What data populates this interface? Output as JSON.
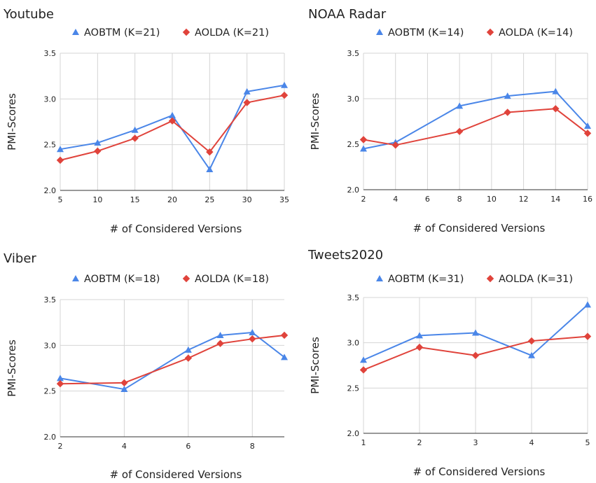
{
  "chart_data": [
    {
      "type": "line",
      "title": "Youtube",
      "xlabel": "# of Considered Versions",
      "ylabel": "PMI-Scores",
      "xlim": [
        5,
        35
      ],
      "ylim": [
        2.0,
        3.5
      ],
      "xticks": [
        5,
        10,
        15,
        20,
        25,
        30,
        35
      ],
      "xtick_labels": [
        "5",
        "10",
        "15",
        "20",
        "25",
        "30",
        "35"
      ],
      "yticks": [
        2.0,
        2.5,
        3.0,
        3.5
      ],
      "ytick_labels": [
        "2.0",
        "2.5",
        "3.0",
        "3.5"
      ],
      "grid": true,
      "legend": "top",
      "series": [
        {
          "name": "AOBTM (K=21)",
          "color": "#4a86e8",
          "marker": "triangle",
          "x": [
            5,
            10,
            15,
            20,
            25,
            30,
            35
          ],
          "values": [
            2.45,
            2.52,
            2.66,
            2.82,
            2.23,
            3.08,
            3.15
          ]
        },
        {
          "name": "AOLDA (K=21)",
          "color": "#e0433b",
          "marker": "diamond",
          "x": [
            5,
            10,
            15,
            20,
            25,
            30,
            35
          ],
          "values": [
            2.33,
            2.43,
            2.57,
            2.76,
            2.42,
            2.96,
            3.04
          ]
        }
      ]
    },
    {
      "type": "line",
      "title": "NOAA Radar",
      "xlabel": "# of Considered Versions",
      "ylabel": "PMI-Scores",
      "xlim": [
        2,
        16
      ],
      "ylim": [
        2.0,
        3.5
      ],
      "xticks": [
        2,
        4,
        6,
        8,
        10,
        12,
        14,
        16
      ],
      "xtick_labels": [
        "2",
        "4",
        "6",
        "8",
        "10",
        "12",
        "14",
        "16"
      ],
      "yticks": [
        2.0,
        2.5,
        3.0,
        3.5
      ],
      "ytick_labels": [
        "2.0",
        "2.5",
        "3.0",
        "3.5"
      ],
      "grid": true,
      "legend": "top",
      "series": [
        {
          "name": "AOBTM (K=14)",
          "color": "#4a86e8",
          "marker": "triangle",
          "x": [
            2,
            4,
            8,
            11,
            14,
            16
          ],
          "values": [
            2.45,
            2.52,
            2.92,
            3.03,
            3.08,
            2.7
          ]
        },
        {
          "name": "AOLDA (K=14)",
          "color": "#e0433b",
          "marker": "diamond",
          "x": [
            2,
            4,
            8,
            11,
            14,
            16
          ],
          "values": [
            2.55,
            2.49,
            2.64,
            2.85,
            2.89,
            2.62
          ]
        }
      ]
    },
    {
      "type": "line",
      "title": "Viber",
      "xlabel": "# of Considered Versions",
      "ylabel": "PMI-Scores",
      "xlim": [
        2,
        9
      ],
      "ylim": [
        2.0,
        3.5
      ],
      "xticks": [
        2,
        4,
        6,
        8
      ],
      "xtick_labels": [
        "2",
        "4",
        "6",
        "8"
      ],
      "yticks": [
        2.0,
        2.5,
        3.0,
        3.5
      ],
      "ytick_labels": [
        "2.0",
        "2.5",
        "3.0",
        "3.5"
      ],
      "grid": true,
      "legend": "top",
      "series": [
        {
          "name": "AOBTM (K=18)",
          "color": "#4a86e8",
          "marker": "triangle",
          "x": [
            2,
            4,
            6,
            7,
            8,
            9
          ],
          "values": [
            2.64,
            2.52,
            2.95,
            3.11,
            3.14,
            2.87
          ]
        },
        {
          "name": "AOLDA (K=18)",
          "color": "#e0433b",
          "marker": "diamond",
          "x": [
            2,
            4,
            6,
            7,
            8,
            9
          ],
          "values": [
            2.58,
            2.59,
            2.86,
            3.02,
            3.07,
            3.11
          ]
        }
      ]
    },
    {
      "type": "line",
      "title": "Tweets2020",
      "xlabel": "# of Considered Versions",
      "ylabel": "PMI-Scores",
      "xlim": [
        1,
        5
      ],
      "ylim": [
        2.0,
        3.5
      ],
      "xticks": [
        1,
        2,
        3,
        4,
        5
      ],
      "xtick_labels": [
        "1",
        "2",
        "3",
        "4",
        "5"
      ],
      "yticks": [
        2.0,
        2.5,
        3.0,
        3.5
      ],
      "ytick_labels": [
        "2.0",
        "2.5",
        "3.0",
        "3.5"
      ],
      "grid": true,
      "legend": "top",
      "series": [
        {
          "name": "AOBTM (K=31)",
          "color": "#4a86e8",
          "marker": "triangle",
          "x": [
            1,
            2,
            3,
            4,
            5
          ],
          "values": [
            2.81,
            3.08,
            3.11,
            2.86,
            3.42
          ]
        },
        {
          "name": "AOLDA (K=31)",
          "color": "#e0433b",
          "marker": "diamond",
          "x": [
            1,
            2,
            3,
            4,
            5
          ],
          "values": [
            2.7,
            2.95,
            2.86,
            3.02,
            3.07
          ]
        }
      ]
    }
  ]
}
